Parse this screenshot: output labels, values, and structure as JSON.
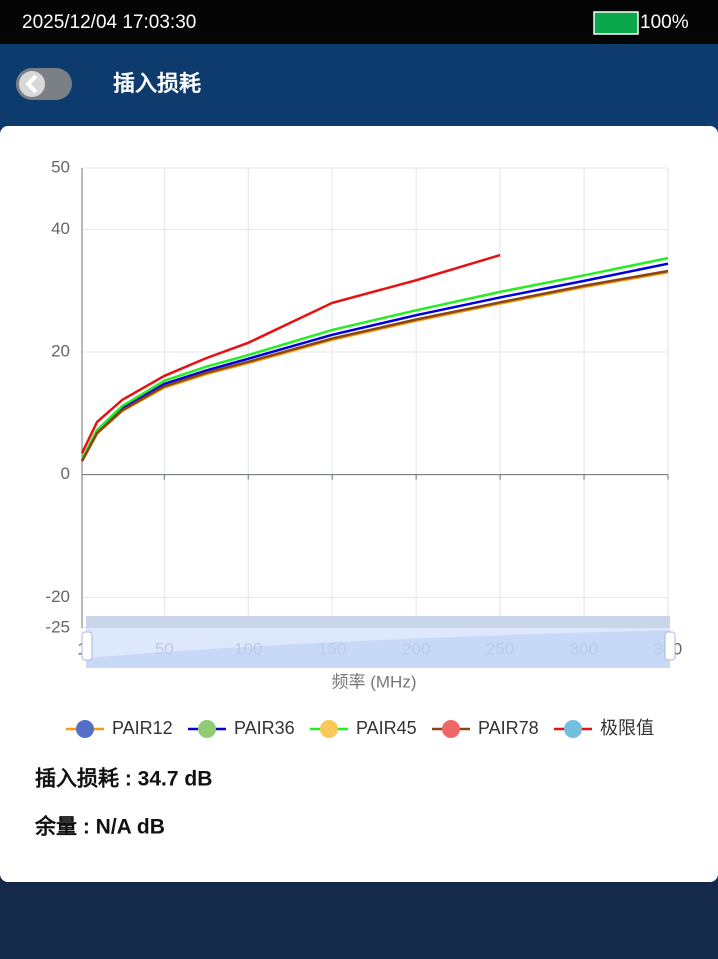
{
  "status_bar": {
    "datetime": "2025/12/04 17:03:30",
    "battery": "100%"
  },
  "header": {
    "title": "插入损耗"
  },
  "chart_data": {
    "type": "line",
    "x_label": "频率 (MHz)",
    "x": [
      1,
      10,
      25,
      50,
      75,
      100,
      150,
      200,
      250,
      300,
      350
    ],
    "xlim": [
      1,
      350
    ],
    "xticks": [
      1,
      50,
      100,
      150,
      200,
      250,
      300,
      350
    ],
    "ylim": [
      -25,
      50
    ],
    "yticks": [
      -25,
      -20,
      0,
      20,
      40,
      50
    ],
    "grid": true,
    "series": [
      {
        "name": "PAIR12",
        "color": "#f39c12",
        "marker_color": "#5470c6",
        "values": [
          2.2,
          6.7,
          10.4,
          14.2,
          16.4,
          18.2,
          22.0,
          25.1,
          27.9,
          30.6,
          33.0
        ]
      },
      {
        "name": "PAIR36",
        "color": "#0000dd",
        "marker_color": "#91cc75",
        "values": [
          2.3,
          7.0,
          10.8,
          14.8,
          17.0,
          18.9,
          22.8,
          26.0,
          28.9,
          31.6,
          34.4
        ]
      },
      {
        "name": "PAIR45",
        "color": "#22ee22",
        "marker_color": "#fac858",
        "values": [
          2.5,
          7.3,
          11.2,
          15.3,
          17.6,
          19.5,
          23.6,
          26.8,
          29.8,
          32.5,
          35.3
        ]
      },
      {
        "name": "PAIR78",
        "color": "#8b4513",
        "marker_color": "#ee6666",
        "values": [
          2.2,
          6.8,
          10.5,
          14.4,
          16.6,
          18.4,
          22.2,
          25.3,
          28.1,
          30.8,
          33.2
        ]
      },
      {
        "name": "极限值",
        "color": "#e81010",
        "marker_color": "#73c0de",
        "values": [
          3.5,
          8.6,
          12.2,
          16.1,
          19.0,
          21.5,
          28.0,
          31.7,
          35.8,
          null,
          null
        ]
      }
    ]
  },
  "info": [
    "插入损耗 : 34.7 dB",
    "余量 : N/A dB"
  ]
}
